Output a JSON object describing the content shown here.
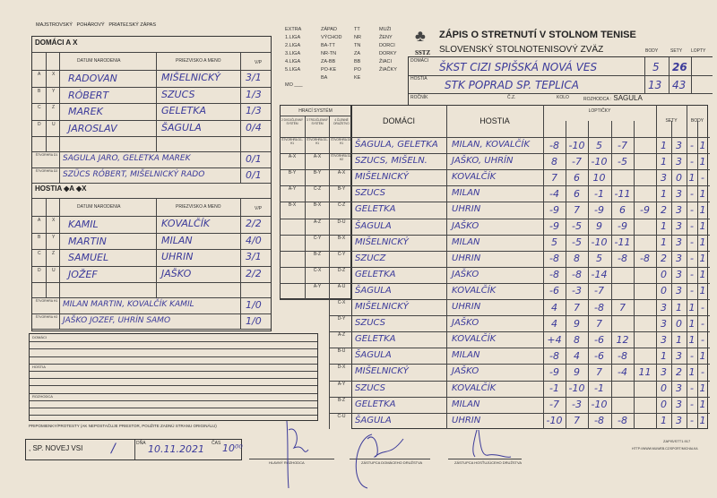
{
  "match_type": {
    "a": "MAJSTROVSKÝ",
    "b": "POHÁROVÝ",
    "c": "PRIATEĽSKÝ ZÁPAS"
  },
  "leagues": [
    [
      "EXTRA",
      "1.LIGA",
      "2.LIGA",
      "3.LIGA",
      "4.LIGA",
      "5.LIGA"
    ],
    [
      "ZÁPAD",
      "VÝCHOD",
      "BA-TT",
      "NR-TN",
      "ZA-BB",
      "PO-KE",
      "BA"
    ],
    [
      "TT",
      "NR",
      "TN",
      "ZA",
      "BB",
      "PO",
      "KE"
    ],
    [
      "MUŽI",
      "ŽENY",
      "DORCI",
      "DORKY",
      "ŽIACI",
      "ŽIAČKY"
    ]
  ],
  "mo_label": "MO ___",
  "header": {
    "title": "ZÁPIS O STRETNUTÍ V STOLNOM TENISE",
    "federation": "SLOVENSKÝ STOLNOTENISOVÝ ZVÄZ",
    "logo_text": "SSTZ",
    "body_label": "BODY",
    "sety_label": "SETY",
    "lopty_label": "LOPTY"
  },
  "clubs": {
    "home_label": "DOMÁCI",
    "home_name": "ŠKST CIZI SPIŠSKÁ NOVÁ VES",
    "home_body": "5",
    "home_sety": "26",
    "away_label": "HOSTIA",
    "away_name": "STK POPRAD SP. TEPLICA",
    "away_body": "13",
    "away_sety": "43",
    "rocnik_label": "ROČNÍK",
    "cz_label": "Č.Z.",
    "kolo_label": "KOLO",
    "referee_label": "ROZHODCA :",
    "referee": "SAGULA"
  },
  "home": {
    "title": "DOMÁCI",
    "title_suffix": "A X",
    "col_dob": "DATUM NARODENIA",
    "col_name": "PRIEZVISKO A MENO",
    "col_vp": "V/P",
    "players": [
      {
        "a": "A",
        "b": "X",
        "first": "RADOVAN",
        "last": "MIŠELNICKÝ",
        "vp": "3/1"
      },
      {
        "a": "B",
        "b": "Y",
        "first": "RÓBERT",
        "last": "SZUCS",
        "vp": "1/3"
      },
      {
        "a": "C",
        "b": "Z",
        "first": "MAREK",
        "last": "GELETKA",
        "vp": "1/3"
      },
      {
        "a": "D",
        "b": "U",
        "first": "JAROSLAV",
        "last": "ŠAGULA",
        "vp": "0/4"
      }
    ],
    "doubles": [
      {
        "label": "ŠTVORHRA D1",
        "text": "SAGULA JARO, GELETKA MAREK",
        "vp": "0/1"
      },
      {
        "label": "ŠTVORHRA D2",
        "text": "SZÜCS RÓBERT, MIŠELNICKÝ RADO",
        "vp": "0/1"
      }
    ]
  },
  "away": {
    "title": "HOSTIA",
    "title_suffix": "◆A ◆X",
    "col_dob": "DATUM NARODENIA",
    "col_name": "PRIEZVISKO A MENO",
    "col_vp": "V/P",
    "players": [
      {
        "a": "A",
        "b": "X",
        "first": "KAMIL",
        "last": "KOVALČÍK",
        "vp": "2/2"
      },
      {
        "a": "B",
        "b": "Y",
        "first": "MARTIN",
        "last": "MILAN",
        "vp": "4/0"
      },
      {
        "a": "C",
        "b": "Z",
        "first": "SAMUEL",
        "last": "UHRIN",
        "vp": "3/1"
      },
      {
        "a": "D",
        "b": "U",
        "first": "JOŽEF",
        "last": "JAŠKO",
        "vp": "2/2"
      }
    ],
    "doubles": [
      {
        "label": "ŠTVORHRA H1",
        "text": "MILAN MARTIN, KOVALČÍK KAMIL",
        "vp": "1/0"
      },
      {
        "label": "ŠTVORHRA H2",
        "text": "JAŠKO JOZEF, UHRÍN SAMO",
        "vp": "1/0"
      }
    ]
  },
  "notes": {
    "domaci": "DOMÁCI",
    "hostia": "HOSTIA",
    "rozhodca": "ROZHODCA",
    "protests": "PRIPOMIENKY/PROTESTY (AK NEPOSTAČUJE PRIESTOR, POUŽITE ZADNÚ STRANU ORIGINÁLU)"
  },
  "footer": {
    "place": ", SP. NOVEJ VSI",
    "place_mark": "/",
    "date_label": "DŇA",
    "date": "10.11.2021",
    "time_label": "ČAS",
    "time": "10⁰⁰",
    "sig1": "HLAVNÝ ROZHODCA",
    "sig2": "ZÁSTUPCA DOMÁCEHO DRUŽSTVA",
    "sig3": "ZÁSTUPCA HOSŤUJÚCEHO DRUŽSTVA",
    "form_code": "ZAPIS/STT1.917",
    "url": "HTTP://WWW.MUWEB.CZ/SPORT/MICHALKA"
  },
  "table": {
    "system_title": "HRACÍ SYSTÉM",
    "sys_cols": [
      "2 DVOJČLENNÝ SYSTÉM",
      "3 TROJČLENNÝ SYSTÉM",
      "4 ČLENNÉ DRUŽSTVO"
    ],
    "col_home": "DOMÁCI",
    "col_away": "HOSTIA",
    "col_balls": "LOPTIČKY",
    "col_sets": "SETY",
    "col_points": "BODY",
    "matches": [
      {
        "sys": [
          "ŠTVORHRA D1-H1",
          "ŠTVORHRA D1-H1",
          "ŠTVORHRA D1-H1"
        ],
        "home": "ŠAGULA, GELETKA",
        "away": "MILAN, KOVALČÍK",
        "balls": [
          "-8",
          "-10",
          "5",
          "-7",
          ""
        ],
        "sets": [
          "1",
          "3"
        ],
        "pts": [
          "-",
          "1"
        ]
      },
      {
        "sys": [
          "A-X",
          "A-X",
          "ŠTVORHRA D2-H2"
        ],
        "home": "SZUCS, MIŠELN.",
        "away": "JAŠKO, UHRÍN",
        "balls": [
          "8",
          "-7",
          "-10",
          "-5",
          ""
        ],
        "sets": [
          "1",
          "3"
        ],
        "pts": [
          "-",
          "1"
        ]
      },
      {
        "sys": [
          "B-Y",
          "B-Y",
          "A-X"
        ],
        "home": "MIŠELNICKÝ",
        "away": "KOVALČÍK",
        "balls": [
          "7",
          "6",
          "10",
          "",
          ""
        ],
        "sets": [
          "3",
          "0"
        ],
        "pts": [
          "1",
          "-"
        ]
      },
      {
        "sys": [
          "A-Y",
          "C-Z",
          "B-Y"
        ],
        "home": "SZUCS",
        "away": "MILAN",
        "balls": [
          "-4",
          "6",
          "-1",
          "-11",
          ""
        ],
        "sets": [
          "1",
          "3"
        ],
        "pts": [
          "-",
          "1"
        ]
      },
      {
        "sys": [
          "B-X",
          "B-X",
          "C-Z"
        ],
        "home": "GELETKA",
        "away": "UHRIN",
        "balls": [
          "-9",
          "7",
          "-9",
          "6",
          "-9"
        ],
        "sets": [
          "2",
          "3"
        ],
        "pts": [
          "-",
          "1"
        ]
      },
      {
        "sys": [
          "",
          "A-Z",
          "D-U"
        ],
        "home": "ŠAGULA",
        "away": "JAŠKO",
        "balls": [
          "-9",
          "-5",
          "9",
          "-9",
          ""
        ],
        "sets": [
          "1",
          "3"
        ],
        "pts": [
          "-",
          "1"
        ]
      },
      {
        "sys": [
          "",
          "C-Y",
          "B-X"
        ],
        "home": "MIŠELNICKÝ",
        "away": "MILAN",
        "balls": [
          "5",
          "-5",
          "-10",
          "-11",
          ""
        ],
        "sets": [
          "1",
          "3"
        ],
        "pts": [
          "-",
          "1"
        ]
      },
      {
        "sys": [
          "",
          "B-Z",
          "C-Y"
        ],
        "home": "SZUCZ",
        "away": "UHRIN",
        "balls": [
          "-8",
          "8",
          "5",
          "-8",
          "-8"
        ],
        "sets": [
          "2",
          "3"
        ],
        "pts": [
          "-",
          "1"
        ]
      },
      {
        "sys": [
          "",
          "C-X",
          "D-Z"
        ],
        "home": "GELETKA",
        "away": "JAŠKO",
        "balls": [
          "-8",
          "-8",
          "-14",
          "",
          ""
        ],
        "sets": [
          "0",
          "3"
        ],
        "pts": [
          "-",
          "1"
        ]
      },
      {
        "sys": [
          "",
          "A-Y",
          "A-U"
        ],
        "home": "ŠAGULA",
        "away": "KOVALČÍK",
        "balls": [
          "-6",
          "-3",
          "-7",
          "",
          ""
        ],
        "sets": [
          "0",
          "3"
        ],
        "pts": [
          "-",
          "1"
        ]
      },
      {
        "sys": [
          "",
          "",
          "C-X"
        ],
        "home": "MIŠELNICKÝ",
        "away": "UHRIN",
        "balls": [
          "4",
          "7",
          "-8",
          "7",
          ""
        ],
        "sets": [
          "3",
          "1"
        ],
        "pts": [
          "1",
          "-"
        ]
      },
      {
        "sys": [
          "",
          "",
          "D-Y"
        ],
        "home": "SZUCS",
        "away": "JAŠKO",
        "balls": [
          "4",
          "9",
          "7",
          "",
          ""
        ],
        "sets": [
          "3",
          "0"
        ],
        "pts": [
          "1",
          "-"
        ]
      },
      {
        "sys": [
          "",
          "",
          "A-Z"
        ],
        "home": "GELETKA",
        "away": "KOVALČÍK",
        "balls": [
          "+4",
          "8",
          "-6",
          "12",
          ""
        ],
        "sets": [
          "3",
          "1"
        ],
        "pts": [
          "1",
          "-"
        ]
      },
      {
        "sys": [
          "",
          "",
          "B-U"
        ],
        "home": "ŠAGULA",
        "away": "MILAN",
        "balls": [
          "-8",
          "4",
          "-6",
          "-8",
          ""
        ],
        "sets": [
          "1",
          "3"
        ],
        "pts": [
          "-",
          "1"
        ]
      },
      {
        "sys": [
          "",
          "",
          "D-X"
        ],
        "home": "MIŠELNICKÝ",
        "away": "JAŠKO",
        "balls": [
          "-9",
          "9",
          "7",
          "-4",
          "11"
        ],
        "sets": [
          "3",
          "2"
        ],
        "pts": [
          "1",
          "-"
        ]
      },
      {
        "sys": [
          "",
          "",
          "A-Y"
        ],
        "home": "SZUCS",
        "away": "KOVALČÍK",
        "balls": [
          "-1",
          "-10",
          "-1",
          "",
          ""
        ],
        "sets": [
          "0",
          "3"
        ],
        "pts": [
          "-",
          "1"
        ]
      },
      {
        "sys": [
          "",
          "",
          "B-Z"
        ],
        "home": "GELETKA",
        "away": "MILAN",
        "balls": [
          "-7",
          "-3",
          "-10",
          "",
          ""
        ],
        "sets": [
          "0",
          "3"
        ],
        "pts": [
          "-",
          "1"
        ]
      },
      {
        "sys": [
          "",
          "",
          "C-U"
        ],
        "home": "ŠAGULA",
        "away": "UHRIN",
        "balls": [
          "-10",
          "7",
          "-8",
          "-8",
          ""
        ],
        "sets": [
          "1",
          "3"
        ],
        "pts": [
          "-",
          "1"
        ]
      }
    ]
  },
  "colors": {
    "paper": "#ece4d6",
    "ink": "#3b3a9a",
    "print": "#222222"
  }
}
